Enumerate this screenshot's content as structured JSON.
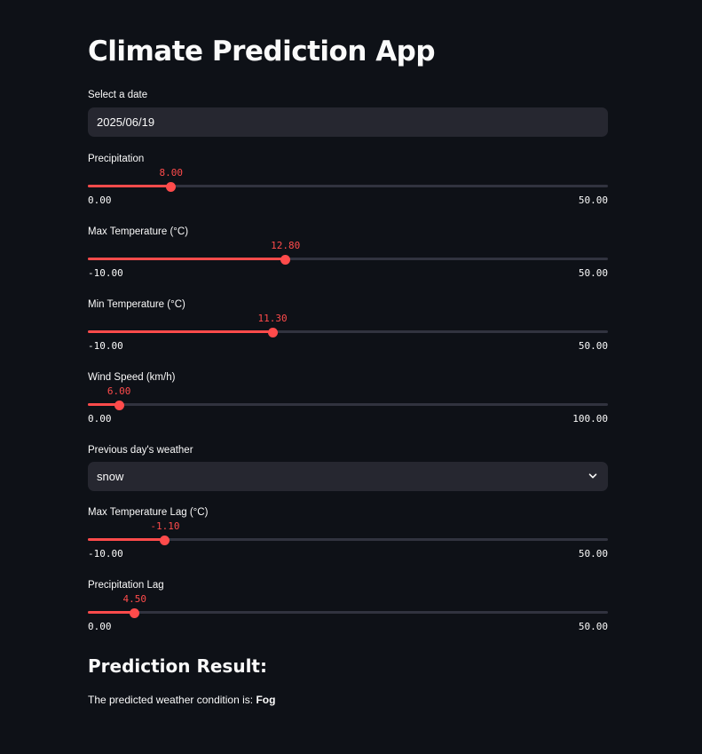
{
  "app": {
    "title": "Climate Prediction App",
    "accent_color": "#ff4b4b",
    "background_color": "#0e1117"
  },
  "date_input": {
    "label": "Select a date",
    "value": "2025/06/19"
  },
  "sliders": [
    {
      "label": "Precipitation",
      "value": 8.0,
      "value_text": "8.00",
      "min": 0,
      "max": 50,
      "min_text": "0.00",
      "max_text": "50.00"
    },
    {
      "label": "Max Temperature (°C)",
      "value": 12.8,
      "value_text": "12.80",
      "min": -10,
      "max": 50,
      "min_text": "-10.00",
      "max_text": "50.00"
    },
    {
      "label": "Min Temperature (°C)",
      "value": 11.3,
      "value_text": "11.30",
      "min": -10,
      "max": 50,
      "min_text": "-10.00",
      "max_text": "50.00"
    },
    {
      "label": "Wind Speed (km/h)",
      "value": 6.0,
      "value_text": "6.00",
      "min": 0,
      "max": 100,
      "min_text": "0.00",
      "max_text": "100.00"
    },
    {
      "label": "Max Temperature Lag (°C)",
      "value": -1.1,
      "value_text": "-1.10",
      "min": -10,
      "max": 50,
      "min_text": "-10.00",
      "max_text": "50.00"
    },
    {
      "label": "Precipitation Lag",
      "value": 4.5,
      "value_text": "4.50",
      "min": 0,
      "max": 50,
      "min_text": "0.00",
      "max_text": "50.00"
    }
  ],
  "weather_select": {
    "label": "Previous day's weather",
    "value": "snow",
    "icon": "chevron-down-icon"
  },
  "prediction": {
    "heading": "Prediction Result:",
    "text": "The predicted weather condition is: ",
    "value": "Fog"
  }
}
